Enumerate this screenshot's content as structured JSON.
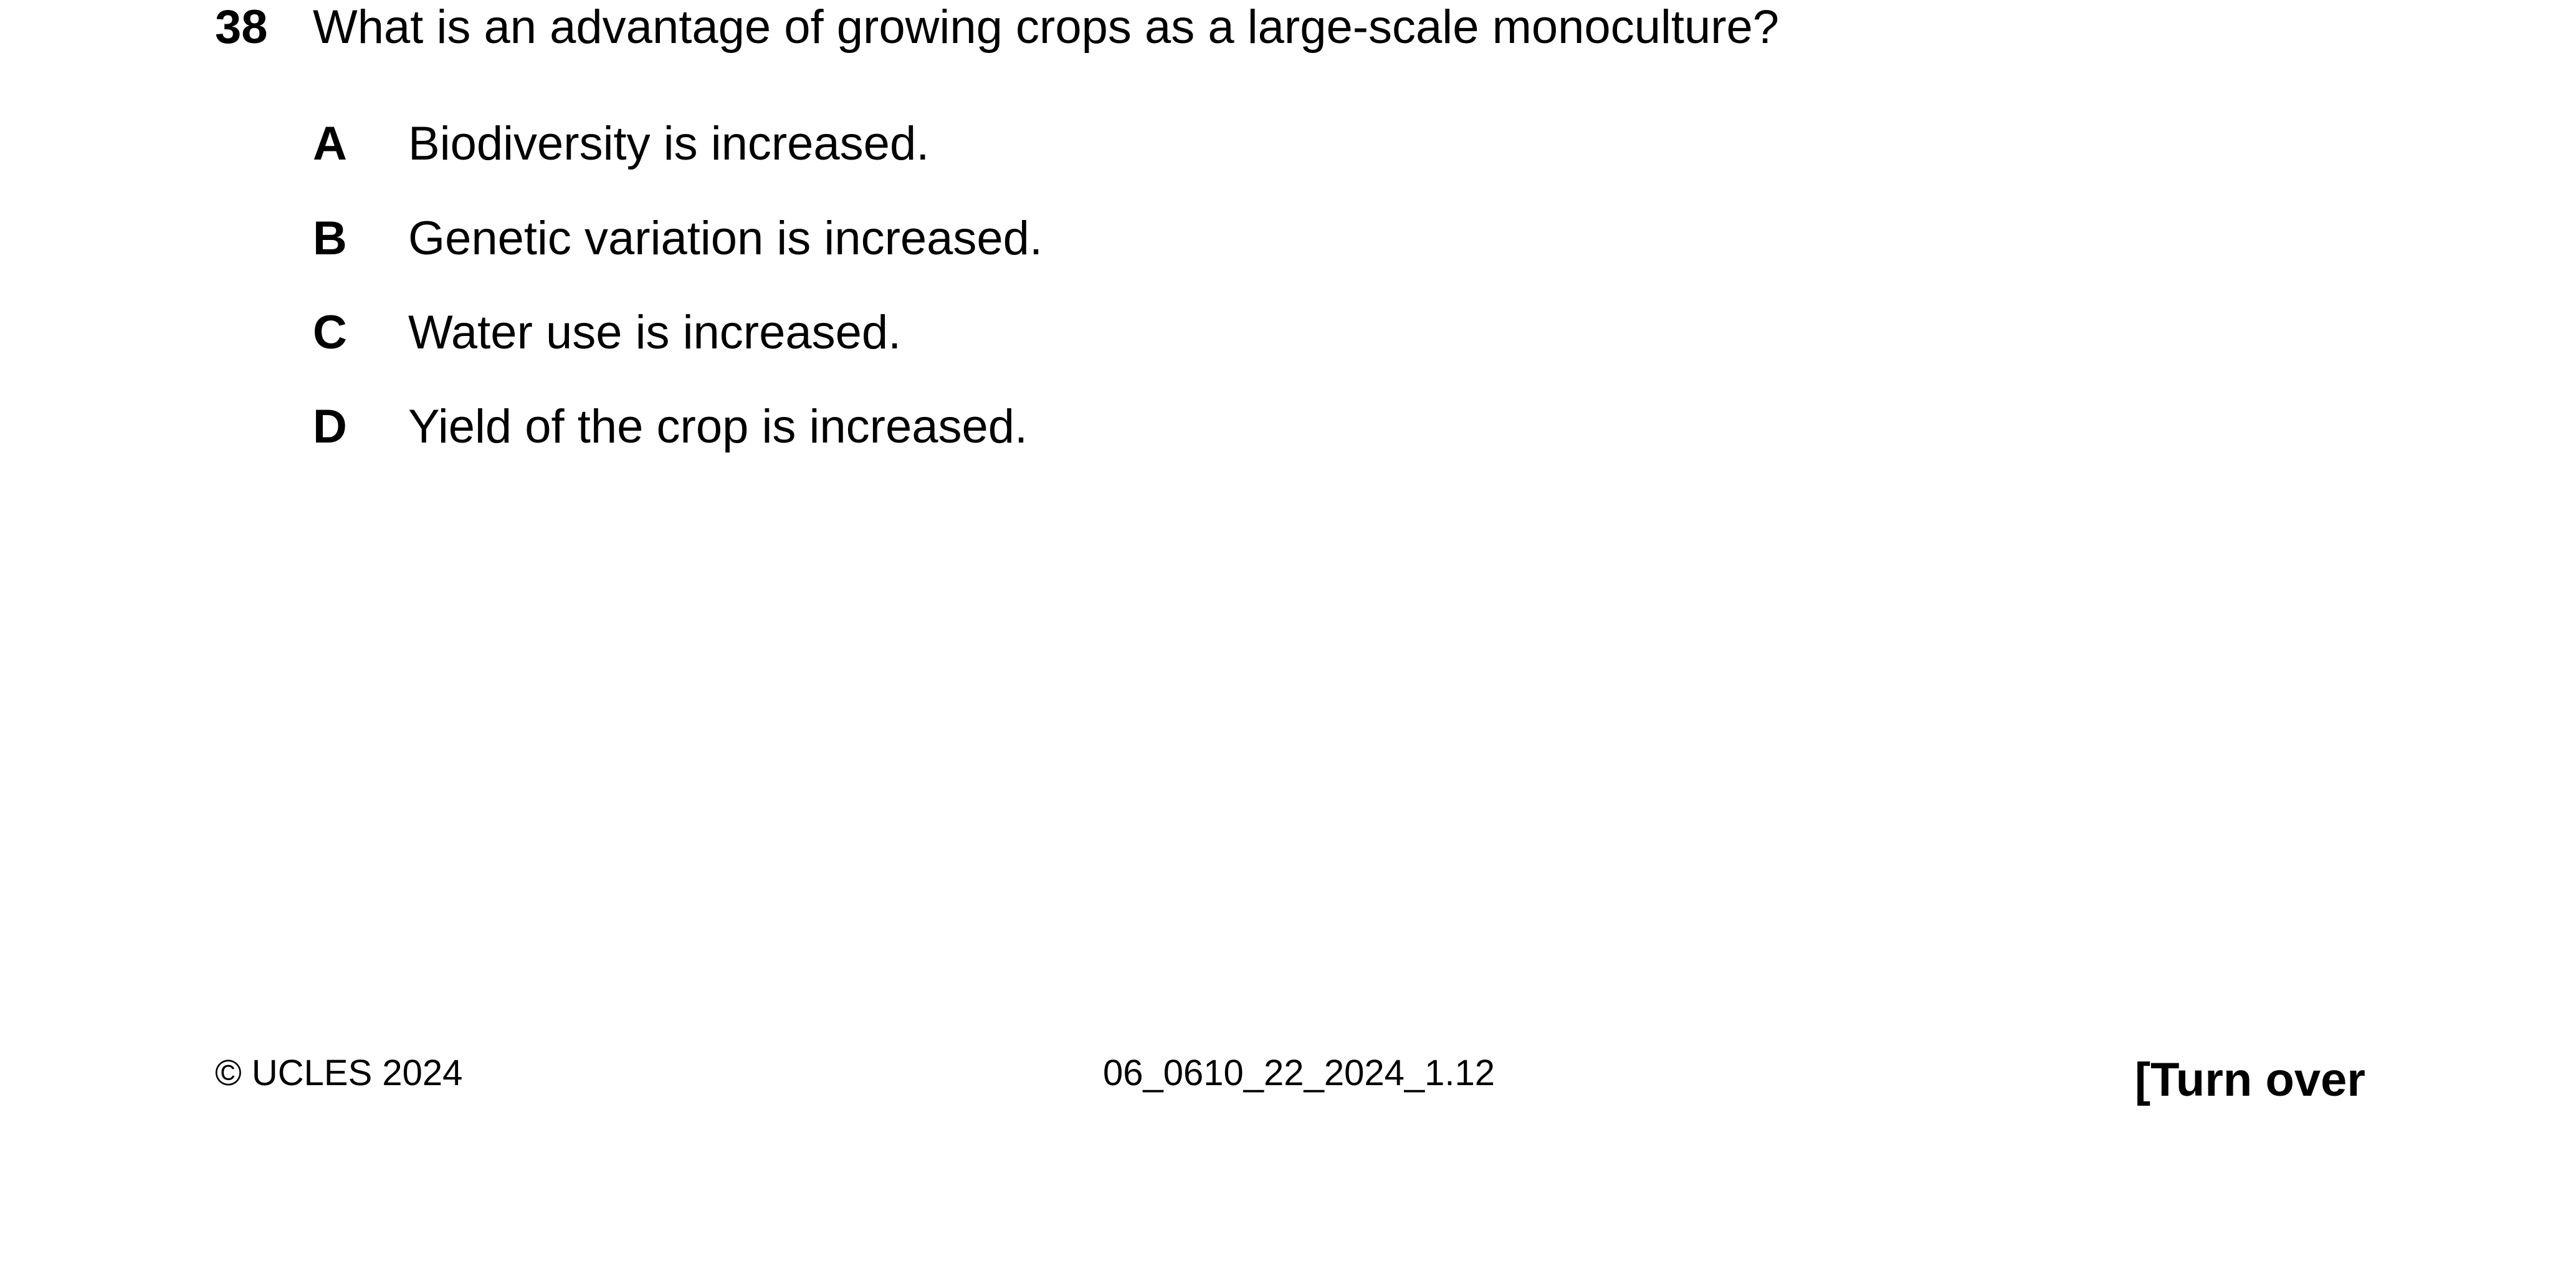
{
  "question": {
    "number": "38",
    "text": "What is an advantage of growing crops as a large-scale monoculture?"
  },
  "options": [
    {
      "letter": "A",
      "text": "Biodiversity is increased."
    },
    {
      "letter": "B",
      "text": "Genetic variation is increased."
    },
    {
      "letter": "C",
      "text": "Water use is increased."
    },
    {
      "letter": "D",
      "text": "Yield of the crop is increased."
    }
  ],
  "footer": {
    "copyright": "© UCLES 2024",
    "code": "06_0610_22_2024_1.12",
    "turn_over": "[Turn over"
  }
}
